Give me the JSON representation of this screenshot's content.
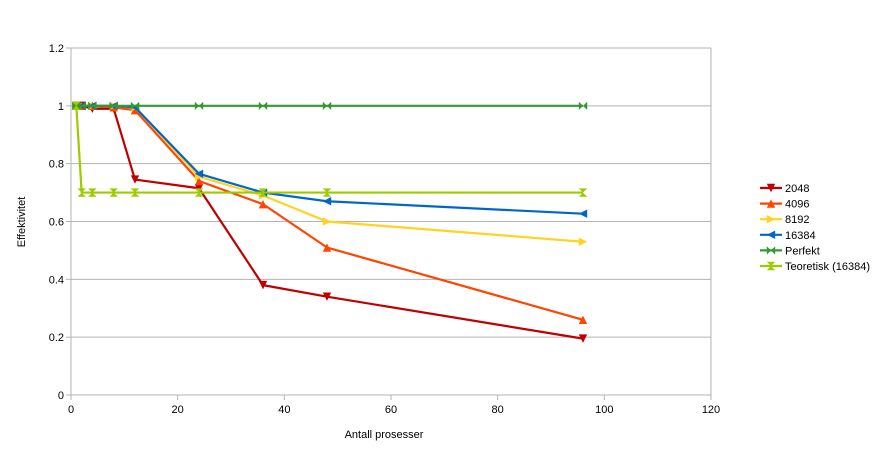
{
  "chart_data": {
    "type": "line",
    "xlabel": "Antall prosesser",
    "ylabel": "Effektivitet",
    "xlim": [
      0,
      120
    ],
    "ylim": [
      0,
      1.2
    ],
    "xticks": [
      0,
      20,
      40,
      60,
      80,
      100,
      120
    ],
    "yticks": [
      0,
      0.2,
      0.4,
      0.6,
      0.8,
      1,
      1.2
    ],
    "grid": "horizontal",
    "legend_position": "right",
    "series": [
      {
        "name": "2048",
        "color": "#c00000",
        "marker": "triangle-down",
        "x": [
          1,
          2,
          4,
          8,
          12,
          24,
          36,
          48,
          96
        ],
        "y": [
          1,
          1,
          0.99,
          0.99,
          0.745,
          0.715,
          0.38,
          0.34,
          0.195
        ]
      },
      {
        "name": "4096",
        "color": "#ff4500",
        "marker": "triangle-up",
        "x": [
          1,
          2,
          4,
          8,
          12,
          24,
          36,
          48,
          96
        ],
        "y": [
          1,
          1,
          1,
          0.995,
          0.985,
          0.74,
          0.66,
          0.51,
          0.26
        ]
      },
      {
        "name": "8192",
        "color": "#ffd320",
        "marker": "triangle-right",
        "x": [
          1,
          2,
          4,
          8,
          12,
          24,
          36,
          48,
          96
        ],
        "y": [
          1,
          1,
          1,
          1,
          0.995,
          0.755,
          0.69,
          0.6,
          0.53
        ]
      },
      {
        "name": "16384",
        "color": "#0066cc",
        "marker": "triangle-left",
        "x": [
          1,
          2,
          4,
          8,
          12,
          24,
          36,
          48,
          96
        ],
        "y": [
          1,
          1,
          1,
          1,
          0.995,
          0.765,
          0.7,
          0.67,
          0.627
        ]
      },
      {
        "name": "Perfekt",
        "color": "#339933",
        "marker": "bowtie",
        "x": [
          1,
          2,
          4,
          8,
          12,
          24,
          36,
          48,
          96
        ],
        "y": [
          1,
          1,
          1,
          1,
          1,
          1,
          1,
          1,
          1
        ]
      },
      {
        "name": "Teoretisk (16384)",
        "color": "#9ccc00",
        "marker": "hourglass",
        "x": [
          1,
          2,
          4,
          8,
          12,
          24,
          36,
          48,
          96
        ],
        "y": [
          1,
          0.7,
          0.7,
          0.7,
          0.7,
          0.7,
          0.7,
          0.7,
          0.7
        ]
      }
    ]
  }
}
